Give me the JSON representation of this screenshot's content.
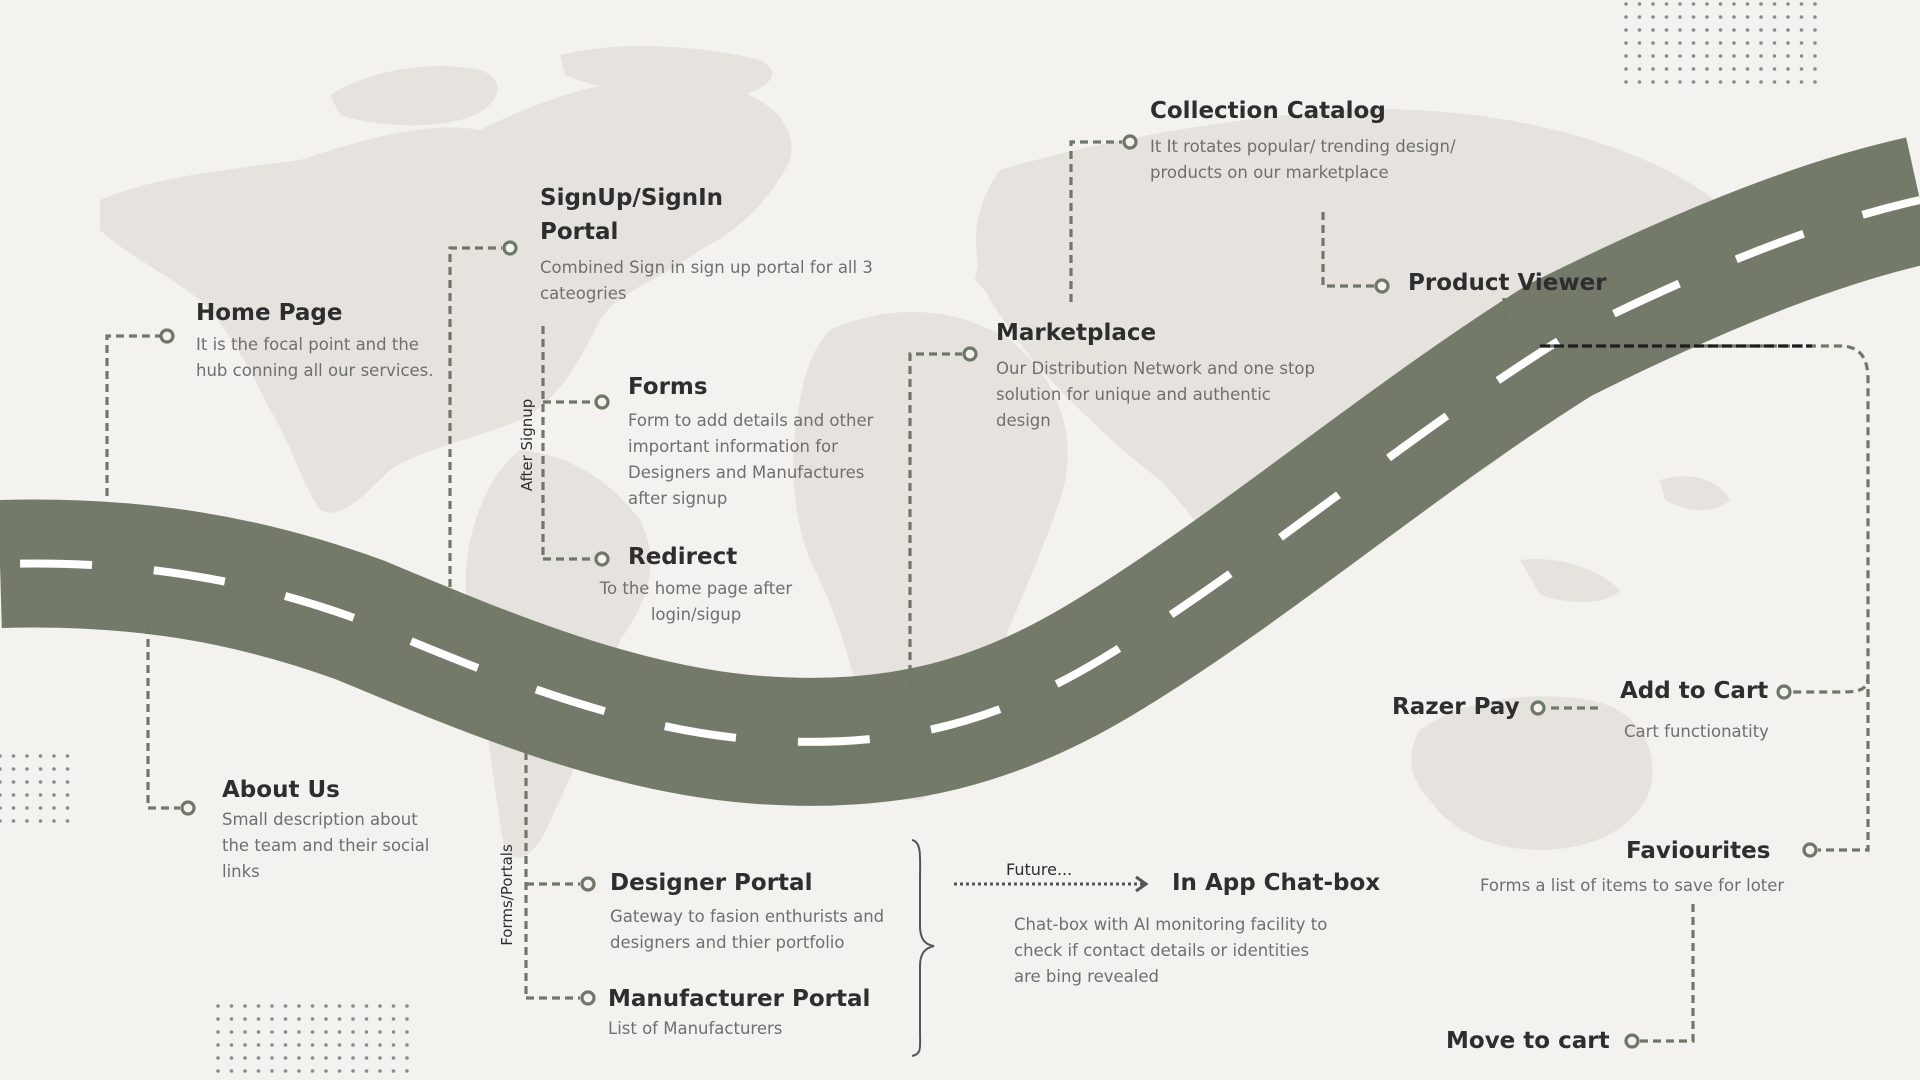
{
  "colors": {
    "background": "#f4f2ef",
    "road": "#737a69",
    "connector": "#6f7768",
    "map": "#e6e3df",
    "title_text": "#2e2e2e",
    "desc_text": "#6f6f6f"
  },
  "nodes": {
    "home_page": {
      "title": "Home Page",
      "desc": "It is the focal point and the hub conning all our services."
    },
    "about_us": {
      "title": "About Us",
      "desc": "Small description about the team and their social links"
    },
    "signup_portal": {
      "title": "SignUp/SignIn Portal",
      "desc": "Combined Sign in sign up portal for all 3 cateogries"
    },
    "forms": {
      "title": "Forms",
      "desc": "Form to add details and other important information for Designers and Manufactures after signup"
    },
    "redirect": {
      "title": "Redirect",
      "desc": "To the home page after login/sigup"
    },
    "designer_portal": {
      "title": "Designer Portal",
      "desc": "Gateway to fasion enthurists and designers and thier portfolio"
    },
    "manufacturer_portal": {
      "title": "Manufacturer Portal",
      "desc": "List of Manufacturers"
    },
    "marketplace": {
      "title": "Marketplace",
      "desc": "Our Distribution Network and one stop solution for unique and authentic design"
    },
    "collection_catalog": {
      "title": "Collection Catalog",
      "desc": "It It rotates popular/ trending design/ products on our marketplace"
    },
    "product_viewer": {
      "title": "Product Viewer"
    },
    "in_app_chatbox": {
      "title": "In App Chat-box",
      "desc": "Chat-box with AI monitoring facility to check if contact details or identities are bing revealed"
    },
    "razer_pay": {
      "title": "Razer Pay"
    },
    "add_to_cart": {
      "title": "Add to Cart",
      "desc": "Cart functionatity"
    },
    "faviourites": {
      "title": "Faviourites",
      "desc": "Forms a list of items to save for loter"
    },
    "move_to_cart": {
      "title": "Move to cart"
    }
  },
  "labels": {
    "after_signup": "After Signup",
    "forms_portals": "Forms/Portals",
    "future": "Future..."
  }
}
